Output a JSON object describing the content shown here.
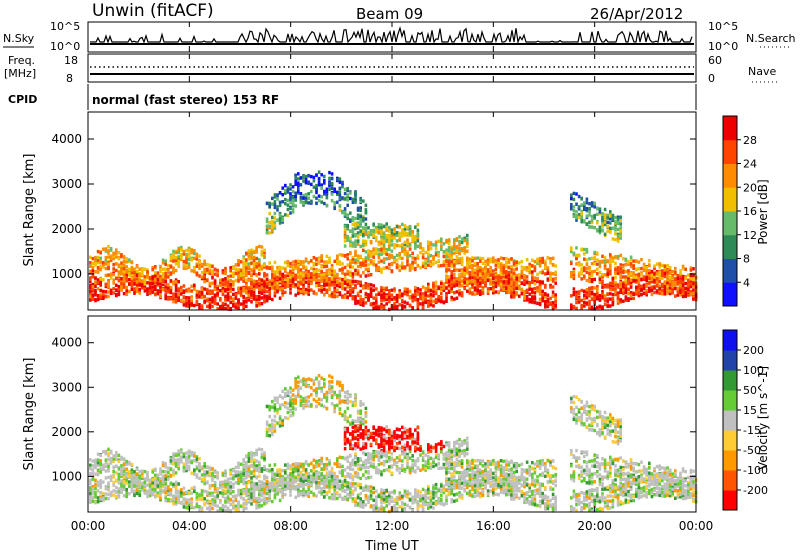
{
  "header": {
    "station": "Unwin (fitACF)",
    "beam": "Beam 09",
    "date": "26/Apr/2012"
  },
  "noise_panel": {
    "left_label": "N.Sky",
    "right_label": "N.Search",
    "left_ticks": [
      "10^5",
      "10^0"
    ],
    "right_ticks": [
      "10^5",
      "10^0"
    ]
  },
  "freq_panel": {
    "left_label_1": "Freq.",
    "left_label_2": "[MHz]",
    "left_ticks": [
      "18",
      "8"
    ],
    "right_label": "Nave",
    "right_ticks": [
      "60",
      "0"
    ]
  },
  "cpid": {
    "label": "CPID",
    "text": "normal (fast stereo) 153 RF"
  },
  "colors": {
    "power_scale": [
      "#1010ff",
      "#1f4fa8",
      "#2e8b57",
      "#66bb6a",
      "#f0c000",
      "#ff8c00",
      "#ff4500",
      "#ee0000"
    ],
    "velocity_scale": [
      "#ff0000",
      "#ff5500",
      "#ff9900",
      "#ffcc33",
      "#c0c0c0",
      "#66cc33",
      "#339933",
      "#2244aa",
      "#1010ee"
    ]
  },
  "chart_data": [
    {
      "type": "heatmap",
      "panel": "power",
      "ylabel": "Slant Range [km]",
      "yticks": [
        "1000",
        "2000",
        "3000",
        "4000"
      ],
      "ylim": [
        200,
        4600
      ],
      "colorbar_label": "Power [dB]",
      "colorbar_ticks": [
        "4",
        "8",
        "12",
        "16",
        "20",
        "24",
        "28"
      ],
      "clim": [
        0,
        32
      ]
    },
    {
      "type": "heatmap",
      "panel": "velocity",
      "ylabel": "Slant Range [km]",
      "yticks": [
        "1000",
        "2000",
        "3000",
        "4000"
      ],
      "ylim": [
        200,
        4600
      ],
      "colorbar_label": "Velocity [m s^-1]",
      "colorbar_ticks": [
        "-200",
        "-100",
        "-50",
        "-15",
        "15",
        "50",
        "100",
        "200"
      ],
      "xlabel": "Time UT",
      "xticks": [
        "00:00",
        "04:00",
        "08:00",
        "12:00",
        "16:00",
        "20:00",
        "00:00"
      ],
      "xlim_hours": [
        0,
        24
      ]
    }
  ]
}
